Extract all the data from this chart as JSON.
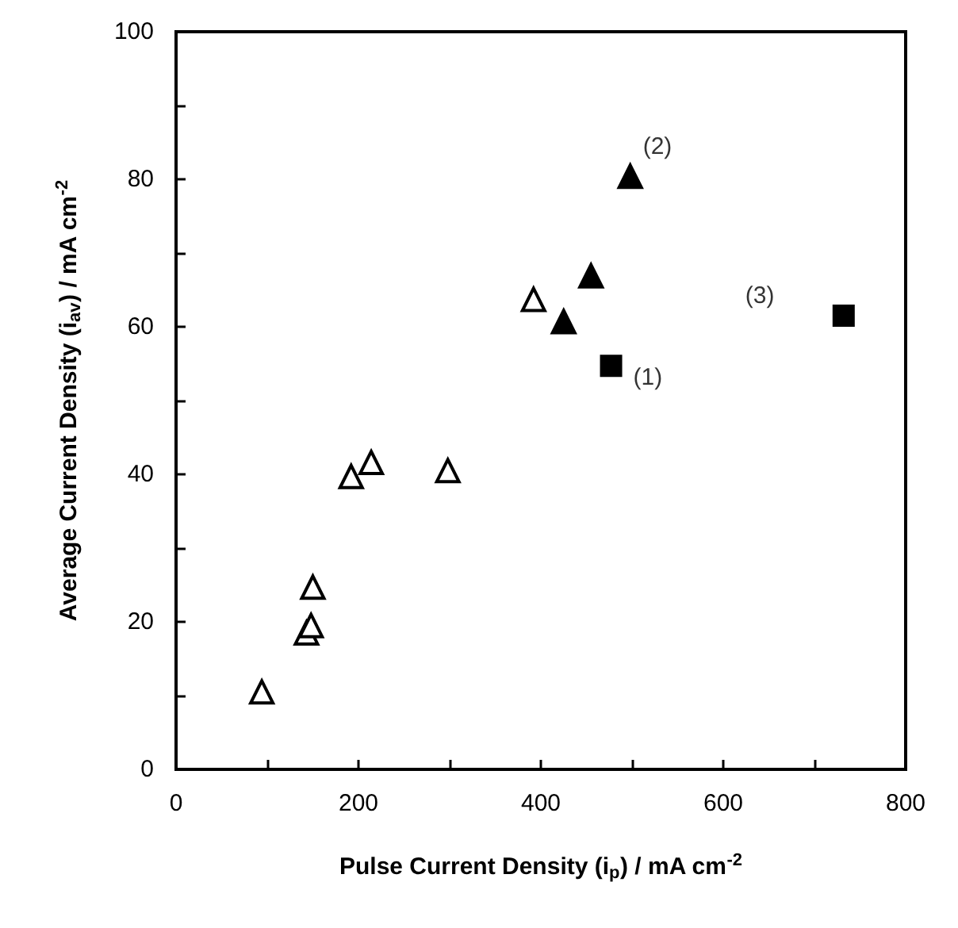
{
  "chart_data": {
    "type": "scatter",
    "xlabel": "Pulse Current Density (i$_{p}$) / mA cm$^{-2}$",
    "ylabel": "Average Current Density (i$_{av}$) / mA cm$^{-2}$",
    "xlim": [
      0,
      800
    ],
    "ylim": [
      0,
      100
    ],
    "xticks": [
      0,
      {
        "value": 100,
        "label": null
      },
      200,
      {
        "value": 300,
        "label": null
      },
      400,
      {
        "value": 500,
        "label": null
      },
      600,
      {
        "value": 700,
        "label": null
      },
      800
    ],
    "yticks": [
      0,
      {
        "value": 10,
        "label": null
      },
      20,
      {
        "value": 30,
        "label": null
      },
      40,
      {
        "value": 50,
        "label": null
      },
      60,
      {
        "value": 70,
        "label": null
      },
      80,
      {
        "value": 90,
        "label": null
      },
      100
    ],
    "grid": false,
    "series": [
      {
        "color": "#ffffff",
        "marker": "triangle",
        "x": [
          94,
          143,
          148,
          150,
          192,
          214,
          298,
          392
        ],
        "values": [
          10.5,
          18.5,
          19.5,
          24.7,
          39.7,
          41.6,
          40.5,
          63.7
        ]
      },
      {
        "color": "#000000",
        "marker": "triangle",
        "x": [
          425,
          455,
          498
        ],
        "values": [
          60.7,
          66.9,
          80.4
        ]
      },
      {
        "color": "#000000",
        "marker": "square",
        "x": [
          477,
          732
        ],
        "values": [
          54.7,
          61.5
        ]
      }
    ],
    "annotations": [
      {
        "text": "(1)",
        "x": 477,
        "y": 54.7
      },
      {
        "text": "(2)",
        "x": 498,
        "y": 80.4
      },
      {
        "text": "(3)",
        "x": 732,
        "y": 61.5
      }
    ]
  }
}
